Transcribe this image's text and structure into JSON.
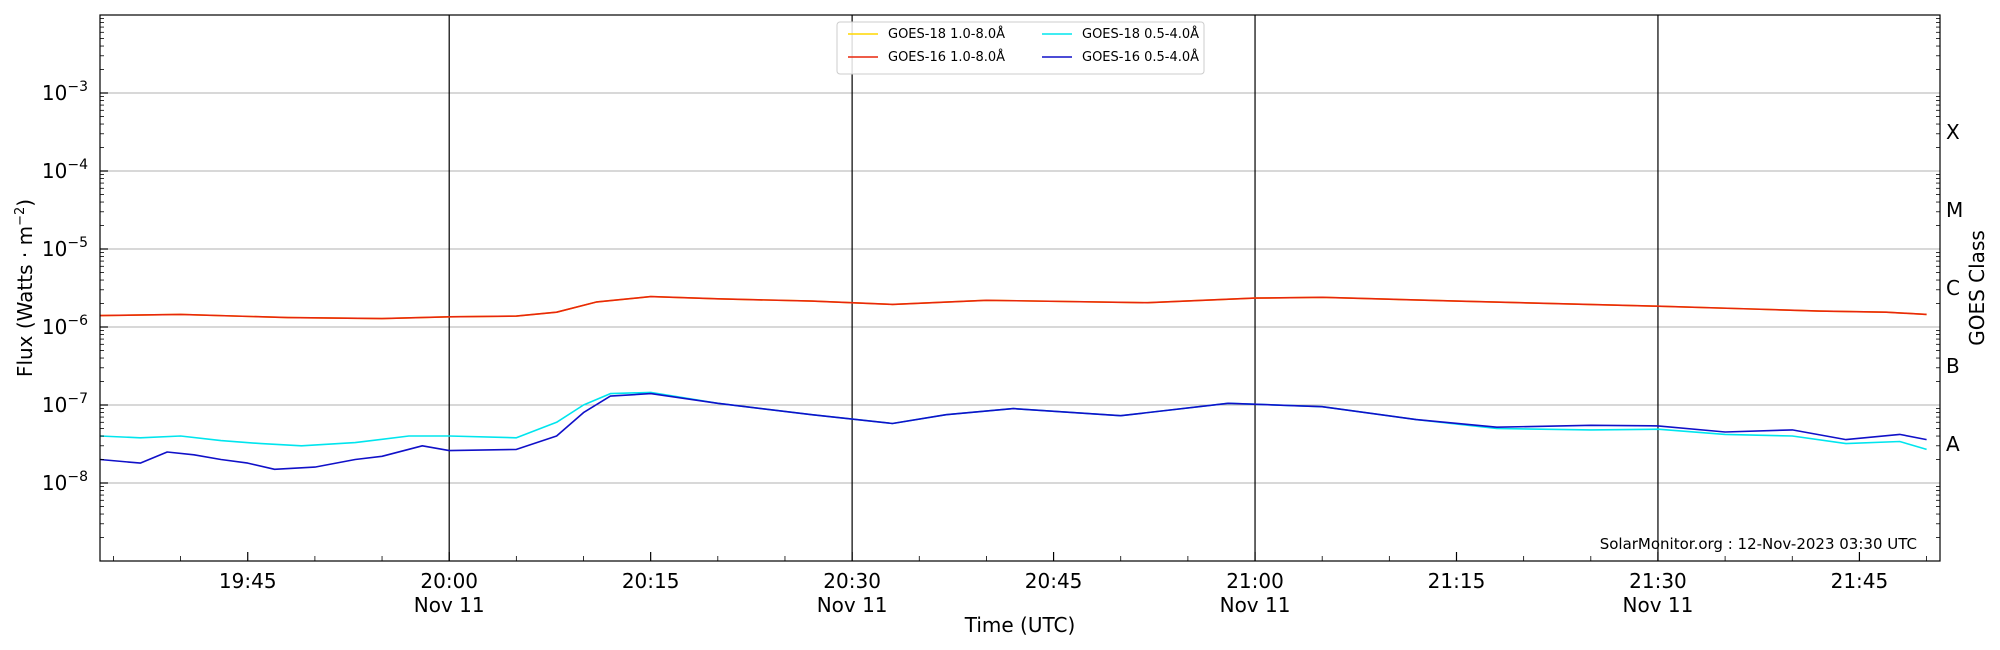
{
  "chart_data": {
    "type": "line",
    "xlabel": "Time (UTC)",
    "ylabel": "Flux (Watts · m",
    "ylabel_sup": "−2",
    "ylabel_close": ")",
    "right_label": "GOES Class",
    "y_scale": "log",
    "ylim": [
      1e-09,
      0.01
    ],
    "xlim": [
      "2023-11-11T19:34",
      "2023-11-11T21:51"
    ],
    "grid": "horizontal",
    "legend_position": "top-center",
    "credit": "SolarMonitor.org : 12-Nov-2023 03:30 UTC",
    "y_ticks": [
      {
        "value": 1e-08,
        "base": "10",
        "exp": "−8"
      },
      {
        "value": 1e-07,
        "base": "10",
        "exp": "−7"
      },
      {
        "value": 1e-06,
        "base": "10",
        "exp": "−6"
      },
      {
        "value": 1e-05,
        "base": "10",
        "exp": "−5"
      },
      {
        "value": 0.0001,
        "base": "10",
        "exp": "−4"
      },
      {
        "value": 0.001,
        "base": "10",
        "exp": "−3"
      }
    ],
    "x_ticks": [
      {
        "time": "2023-11-11T19:45",
        "label": "19:45",
        "date": ""
      },
      {
        "time": "2023-11-11T20:00",
        "label": "20:00",
        "date": "Nov 11"
      },
      {
        "time": "2023-11-11T20:15",
        "label": "20:15",
        "date": ""
      },
      {
        "time": "2023-11-11T20:30",
        "label": "20:30",
        "date": "Nov 11"
      },
      {
        "time": "2023-11-11T20:45",
        "label": "20:45",
        "date": ""
      },
      {
        "time": "2023-11-11T21:00",
        "label": "21:00",
        "date": "Nov 11"
      },
      {
        "time": "2023-11-11T21:15",
        "label": "21:15",
        "date": ""
      },
      {
        "time": "2023-11-11T21:30",
        "label": "21:30",
        "date": "Nov 11"
      },
      {
        "time": "2023-11-11T21:45",
        "label": "21:45",
        "date": ""
      }
    ],
    "vlines": [
      "2023-11-11T20:00",
      "2023-11-11T20:30",
      "2023-11-11T21:00",
      "2023-11-11T21:30"
    ],
    "class_labels": [
      {
        "label": "A",
        "value": 3.16e-08
      },
      {
        "label": "B",
        "value": 3.16e-07
      },
      {
        "label": "C",
        "value": 3.16e-06
      },
      {
        "label": "M",
        "value": 3.16e-05
      },
      {
        "label": "X",
        "value": 0.000316
      }
    ],
    "series": [
      {
        "name": "GOES-18 1.0-8.0Å",
        "color": "#FFD700",
        "x": [
          "2023-11-11T19:34",
          "2023-11-11T19:40",
          "2023-11-11T19:48",
          "2023-11-11T19:55",
          "2023-11-11T20:00",
          "2023-11-11T20:05",
          "2023-11-11T20:08",
          "2023-11-11T20:11",
          "2023-11-11T20:15",
          "2023-11-11T20:20",
          "2023-11-11T20:27",
          "2023-11-11T20:33",
          "2023-11-11T20:40",
          "2023-11-11T20:52",
          "2023-11-11T21:00",
          "2023-11-11T21:05",
          "2023-11-11T21:15",
          "2023-11-11T21:30",
          "2023-11-11T21:37",
          "2023-11-11T21:42",
          "2023-11-11T21:47",
          "2023-11-11T21:50"
        ],
        "y": [
          1.4e-06,
          1.45e-06,
          1.32e-06,
          1.28e-06,
          1.35e-06,
          1.38e-06,
          1.55e-06,
          2.1e-06,
          2.45e-06,
          2.3e-06,
          2.15e-06,
          1.95e-06,
          2.2e-06,
          2.05e-06,
          2.35e-06,
          2.4e-06,
          2.15e-06,
          1.85e-06,
          1.7e-06,
          1.6e-06,
          1.55e-06,
          1.45e-06
        ]
      },
      {
        "name": "GOES-16 1.0-8.0Å",
        "color": "#E8260C",
        "x": [
          "2023-11-11T19:34",
          "2023-11-11T19:40",
          "2023-11-11T19:48",
          "2023-11-11T19:55",
          "2023-11-11T20:00",
          "2023-11-11T20:05",
          "2023-11-11T20:08",
          "2023-11-11T20:11",
          "2023-11-11T20:15",
          "2023-11-11T20:20",
          "2023-11-11T20:27",
          "2023-11-11T20:33",
          "2023-11-11T20:40",
          "2023-11-11T20:52",
          "2023-11-11T21:00",
          "2023-11-11T21:05",
          "2023-11-11T21:15",
          "2023-11-11T21:30",
          "2023-11-11T21:37",
          "2023-11-11T21:42",
          "2023-11-11T21:47",
          "2023-11-11T21:50"
        ],
        "y": [
          1.4e-06,
          1.45e-06,
          1.32e-06,
          1.28e-06,
          1.35e-06,
          1.38e-06,
          1.55e-06,
          2.1e-06,
          2.45e-06,
          2.3e-06,
          2.15e-06,
          1.95e-06,
          2.2e-06,
          2.05e-06,
          2.35e-06,
          2.4e-06,
          2.15e-06,
          1.85e-06,
          1.7e-06,
          1.6e-06,
          1.55e-06,
          1.45e-06
        ]
      },
      {
        "name": "GOES-18 0.5-4.0Å",
        "color": "#00E5EE",
        "x": [
          "2023-11-11T19:34",
          "2023-11-11T19:37",
          "2023-11-11T19:40",
          "2023-11-11T19:43",
          "2023-11-11T19:46",
          "2023-11-11T19:49",
          "2023-11-11T19:53",
          "2023-11-11T19:57",
          "2023-11-11T20:00",
          "2023-11-11T20:05",
          "2023-11-11T20:08",
          "2023-11-11T20:10",
          "2023-11-11T20:12",
          "2023-11-11T20:15",
          "2023-11-11T20:20",
          "2023-11-11T20:27",
          "2023-11-11T20:33",
          "2023-11-11T20:37",
          "2023-11-11T20:42",
          "2023-11-11T20:50",
          "2023-11-11T20:58",
          "2023-11-11T21:05",
          "2023-11-11T21:12",
          "2023-11-11T21:18",
          "2023-11-11T21:25",
          "2023-11-11T21:30",
          "2023-11-11T21:35",
          "2023-11-11T21:40",
          "2023-11-11T21:44",
          "2023-11-11T21:48",
          "2023-11-11T21:50"
        ],
        "y": [
          4e-08,
          3.8e-08,
          4e-08,
          3.5e-08,
          3.2e-08,
          3e-08,
          3.3e-08,
          4e-08,
          4e-08,
          3.8e-08,
          6e-08,
          1e-07,
          1.4e-07,
          1.45e-07,
          1.05e-07,
          7.5e-08,
          5.8e-08,
          7.5e-08,
          9e-08,
          7.3e-08,
          1.05e-07,
          9.5e-08,
          6.5e-08,
          5e-08,
          4.8e-08,
          4.9e-08,
          4.2e-08,
          4e-08,
          3.2e-08,
          3.4e-08,
          2.7e-08
        ]
      },
      {
        "name": "GOES-16 0.5-4.0Å",
        "color": "#1010C8",
        "x": [
          "2023-11-11T19:34",
          "2023-11-11T19:37",
          "2023-11-11T19:39",
          "2023-11-11T19:41",
          "2023-11-11T19:43",
          "2023-11-11T19:45",
          "2023-11-11T19:47",
          "2023-11-11T19:50",
          "2023-11-11T19:53",
          "2023-11-11T19:55",
          "2023-11-11T19:58",
          "2023-11-11T20:00",
          "2023-11-11T20:05",
          "2023-11-11T20:08",
          "2023-11-11T20:10",
          "2023-11-11T20:12",
          "2023-11-11T20:15",
          "2023-11-11T20:20",
          "2023-11-11T20:27",
          "2023-11-11T20:33",
          "2023-11-11T20:37",
          "2023-11-11T20:42",
          "2023-11-11T20:50",
          "2023-11-11T20:58",
          "2023-11-11T21:05",
          "2023-11-11T21:12",
          "2023-11-11T21:18",
          "2023-11-11T21:25",
          "2023-11-11T21:30",
          "2023-11-11T21:35",
          "2023-11-11T21:40",
          "2023-11-11T21:44",
          "2023-11-11T21:48",
          "2023-11-11T21:50"
        ],
        "y": [
          2e-08,
          1.8e-08,
          2.5e-08,
          2.3e-08,
          2e-08,
          1.8e-08,
          1.5e-08,
          1.6e-08,
          2e-08,
          2.2e-08,
          3e-08,
          2.6e-08,
          2.7e-08,
          4e-08,
          8e-08,
          1.3e-07,
          1.4e-07,
          1.05e-07,
          7.5e-08,
          5.8e-08,
          7.5e-08,
          9e-08,
          7.3e-08,
          1.05e-07,
          9.5e-08,
          6.5e-08,
          5.2e-08,
          5.5e-08,
          5.4e-08,
          4.5e-08,
          4.8e-08,
          3.6e-08,
          4.2e-08,
          3.6e-08
        ]
      }
    ]
  }
}
